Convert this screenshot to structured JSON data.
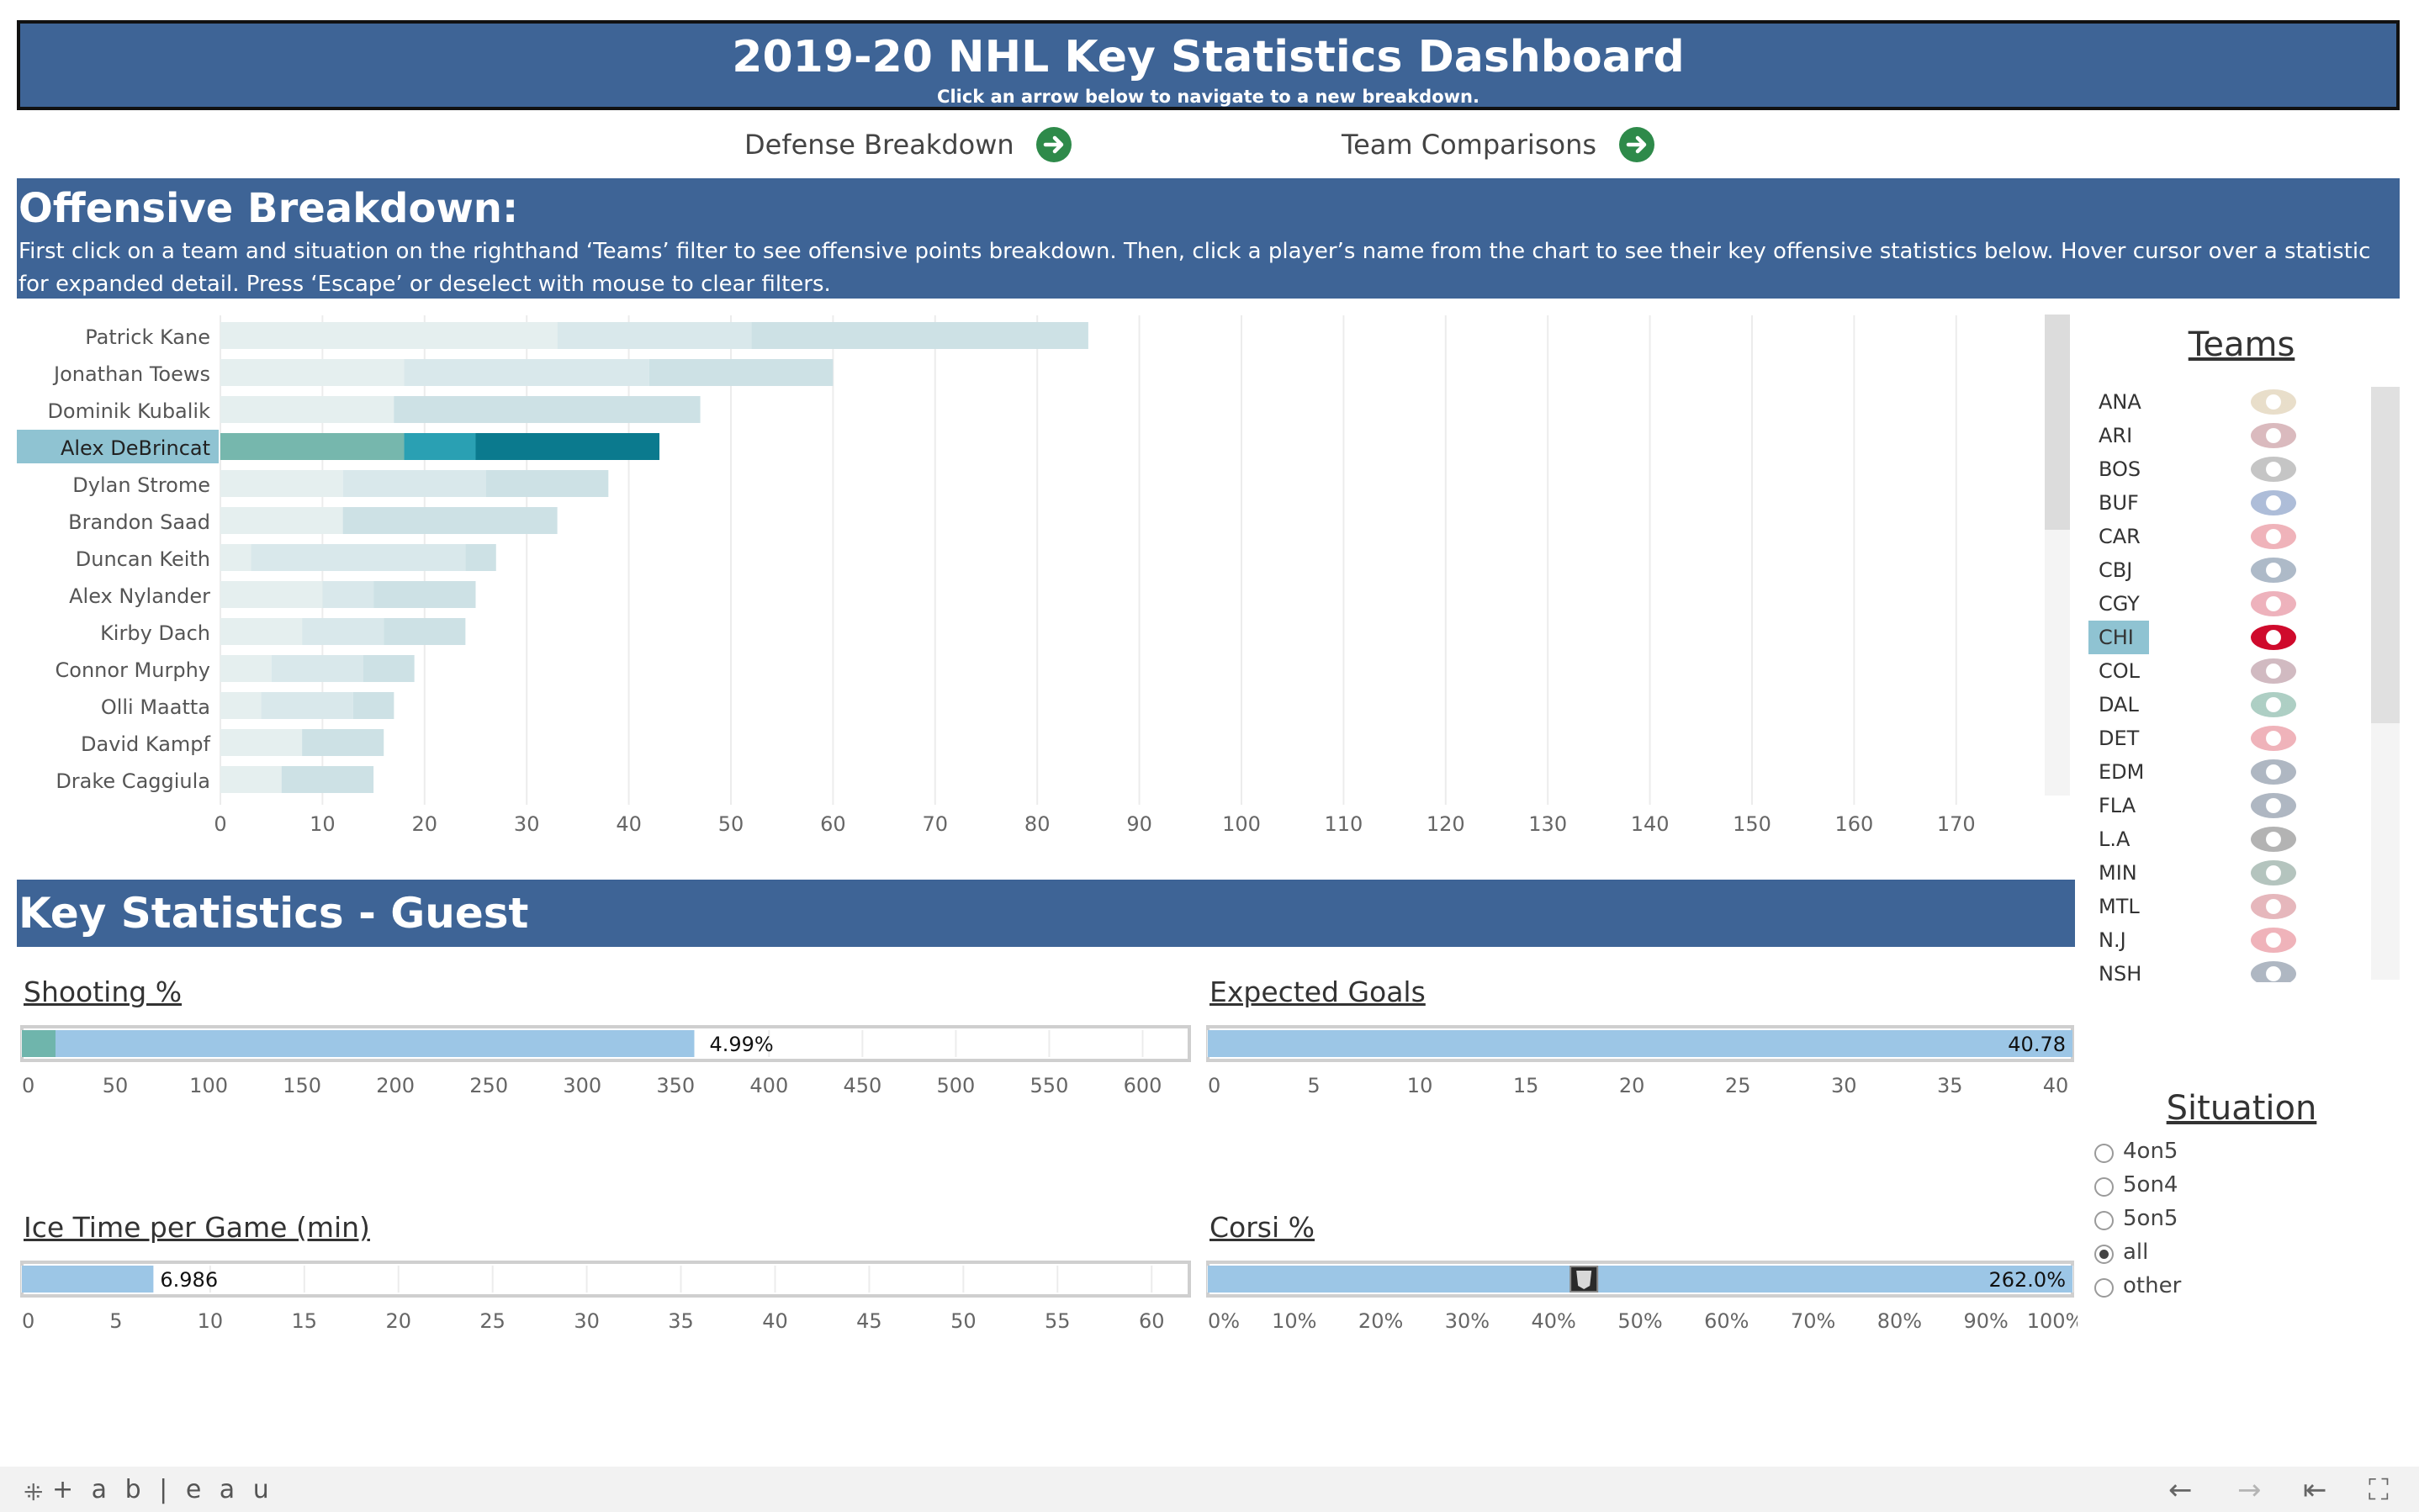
{
  "header": {
    "title": "2019-20 NHL Key Statistics Dashboard",
    "subtitle": "Click an arrow below to navigate to a new breakdown."
  },
  "nav": {
    "defense_label": "Defense Breakdown",
    "teams_label": "Team Comparisons"
  },
  "offense": {
    "heading": "Offensive Breakdown:",
    "description": "First click on a team and situation on the righthand ‘Teams’ filter to see offensive points breakdown.  Then, click a player’s name from the chart to see their key offensive statistics below. Hover cursor over a statistic for expanded detail. Press ‘Escape’ or deselect with mouse to clear filters."
  },
  "chart_data": {
    "type": "bar",
    "stacked": true,
    "orientation": "horizontal",
    "categories": [
      "Patrick Kane",
      "Jonathan Toews",
      "Dominik Kubalik",
      "Alex DeBrincat",
      "Dylan Strome",
      "Brandon Saad",
      "Duncan Keith",
      "Alex Nylander",
      "Kirby Dach",
      "Connor Murphy",
      "Olli Maatta",
      "David Kampf",
      "Drake Caggiula"
    ],
    "highlighted": "Alex DeBrincat",
    "series": [
      {
        "values": [
          33,
          18,
          30,
          18,
          12,
          21,
          3,
          10,
          8,
          5,
          4,
          8,
          9
        ]
      },
      {
        "values": [
          52,
          42,
          17,
          25,
          26,
          12,
          24,
          15,
          16,
          14,
          13,
          8,
          6
        ]
      },
      {
        "values": [
          85,
          60,
          47,
          43,
          38,
          33,
          27,
          25,
          24,
          19,
          17,
          16,
          15
        ]
      }
    ],
    "xlim": [
      0,
      180
    ],
    "xticks": [
      "0",
      "10",
      "20",
      "30",
      "40",
      "50",
      "60",
      "70",
      "80",
      "90",
      "100",
      "110",
      "120",
      "130",
      "140",
      "150",
      "160",
      "170"
    ],
    "colors_dim": [
      "#e5efef",
      "#d9e8eb",
      "#cde1e5"
    ],
    "colors_highlight": [
      "#76b7ad",
      "#2aa0b3",
      "#0b7a8e"
    ],
    "grid": true
  },
  "teams": {
    "title": "Teams",
    "selected": "CHI",
    "items": [
      {
        "code": "ANA",
        "color": "#b9975b"
      },
      {
        "code": "ARI",
        "color": "#8c2633"
      },
      {
        "code": "BOS",
        "color": "#4a4a4a"
      },
      {
        "code": "BUF",
        "color": "#003087"
      },
      {
        "code": "CAR",
        "color": "#ce1126"
      },
      {
        "code": "CBJ",
        "color": "#002654"
      },
      {
        "code": "CGY",
        "color": "#c8102e"
      },
      {
        "code": "CHI",
        "color": "#cf0a2c"
      },
      {
        "code": "COL",
        "color": "#6f263d"
      },
      {
        "code": "DAL",
        "color": "#006847"
      },
      {
        "code": "DET",
        "color": "#ce1126"
      },
      {
        "code": "EDM",
        "color": "#041e42"
      },
      {
        "code": "FLA",
        "color": "#041e42"
      },
      {
        "code": "L.A",
        "color": "#111111"
      },
      {
        "code": "MIN",
        "color": "#154734"
      },
      {
        "code": "MTL",
        "color": "#af1e2d"
      },
      {
        "code": "N.J",
        "color": "#ce1126"
      },
      {
        "code": "NSH",
        "color": "#041e42"
      }
    ]
  },
  "key_stats": {
    "heading": "Key Statistics - Guest",
    "metrics": [
      {
        "title": "Shooting %",
        "value": 4.99,
        "value_label": "4.99%",
        "ticks": [
          "0",
          "50",
          "100",
          "150",
          "200",
          "250",
          "300",
          "350",
          "400",
          "450",
          "500",
          "550",
          "600"
        ],
        "bar_value": 360,
        "marker_value": 18,
        "max": 625
      },
      {
        "title": "Expected Goals",
        "value": 40.78,
        "value_label": "40.78",
        "ticks": [
          "0",
          "5",
          "10",
          "15",
          "20",
          "25",
          "30",
          "35",
          "40"
        ],
        "bar_value": 40.78,
        "max": 40.78
      },
      {
        "title": "Ice Time per Game (min)",
        "value": 6.986,
        "value_label": "6.986",
        "ticks": [
          "0",
          "5",
          "10",
          "15",
          "20",
          "25",
          "30",
          "35",
          "40",
          "45",
          "50",
          "55",
          "60"
        ],
        "bar_value": 6.986,
        "max": 62
      },
      {
        "title": "Corsi %",
        "value": 262.0,
        "value_label": "262.0%",
        "ticks": [
          "0%",
          "10%",
          "20%",
          "30%",
          "40%",
          "50%",
          "60%",
          "70%",
          "80%",
          "90%",
          "100%"
        ],
        "bar_value": 100,
        "marker_value": 43.5,
        "max": 100
      }
    ]
  },
  "situation": {
    "title": "Situation",
    "selected": "all",
    "options": [
      "4on5",
      "5on4",
      "5on5",
      "all",
      "other"
    ]
  },
  "footer": {
    "brand": "+ a b | e a u"
  }
}
